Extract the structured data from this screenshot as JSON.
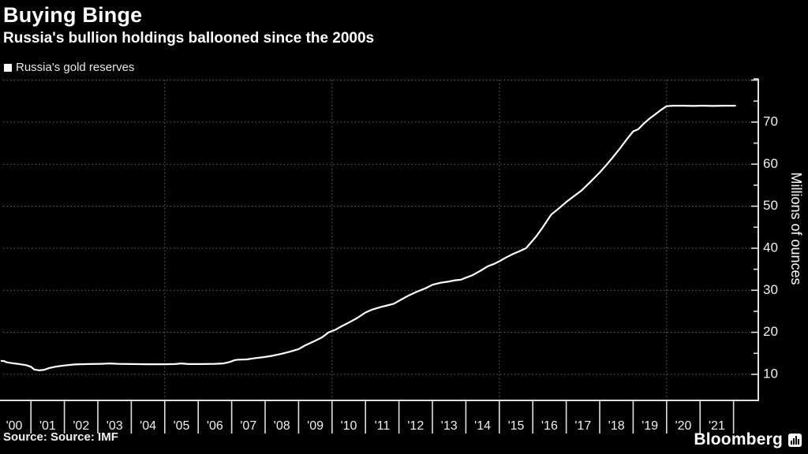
{
  "header": {
    "title": "Buying Binge",
    "subtitle": "Russia's bullion holdings ballooned since the 2000s"
  },
  "legend": {
    "label": "Russia's gold reserves",
    "marker_color": "#ffffff"
  },
  "source": {
    "text": "Source: Source: IMF"
  },
  "branding": {
    "name": "Bloomberg",
    "icon": "bar-chart-icon"
  },
  "colors": {
    "background": "#000000",
    "line": "#ffffff",
    "grid": "#6b6b6b",
    "axis": "#e0e0e0",
    "tick_label": "#f0f0f0"
  },
  "chart_data": {
    "type": "line",
    "title": "Buying Binge",
    "series_name": "Russia's gold reserves",
    "xlabel": "",
    "ylabel": "Millions of ounces",
    "x_unit": "year",
    "y_unit": "millions of troy ounces",
    "xlim": [
      2000.17,
      2022.74
    ],
    "ylim": [
      3.8,
      80.3
    ],
    "grid": "dotted",
    "legend_position": "top-left",
    "x_tick_labels": [
      "'00",
      "'01",
      "'02",
      "'03",
      "'04",
      "'05",
      "'06",
      "'07",
      "'08",
      "'09",
      "'10",
      "'11",
      "'12",
      "'13",
      "'14",
      "'15",
      "'16",
      "'17",
      "'18",
      "'19",
      "'20",
      "'21"
    ],
    "x_tick_years": [
      2000,
      2001,
      2002,
      2003,
      2004,
      2005,
      2006,
      2007,
      2008,
      2009,
      2010,
      2011,
      2012,
      2013,
      2014,
      2015,
      2016,
      2017,
      2018,
      2019,
      2020,
      2021
    ],
    "y_major_ticks": [
      10,
      20,
      30,
      40,
      50,
      60,
      70
    ],
    "y_minor_step": 5,
    "y_gridlines": [
      10,
      20,
      30,
      40,
      50,
      60,
      70,
      80
    ],
    "x_gridline_years": [
      2005,
      2010,
      2015,
      2020
    ],
    "points": [
      [
        2000.12,
        13.2
      ],
      [
        2000.2,
        13.15
      ],
      [
        2000.28,
        12.85
      ],
      [
        2000.45,
        12.65
      ],
      [
        2000.65,
        12.45
      ],
      [
        2000.85,
        12.2
      ],
      [
        2001.0,
        11.8
      ],
      [
        2001.1,
        11.15
      ],
      [
        2001.25,
        10.95
      ],
      [
        2001.4,
        11.1
      ],
      [
        2001.55,
        11.5
      ],
      [
        2001.75,
        11.85
      ],
      [
        2002.0,
        12.1
      ],
      [
        2002.3,
        12.35
      ],
      [
        2002.7,
        12.45
      ],
      [
        2003.1,
        12.5
      ],
      [
        2003.35,
        12.6
      ],
      [
        2003.6,
        12.5
      ],
      [
        2004.0,
        12.45
      ],
      [
        2004.5,
        12.4
      ],
      [
        2005.0,
        12.4
      ],
      [
        2005.3,
        12.45
      ],
      [
        2005.5,
        12.6
      ],
      [
        2005.7,
        12.45
      ],
      [
        2006.1,
        12.45
      ],
      [
        2006.5,
        12.5
      ],
      [
        2006.75,
        12.6
      ],
      [
        2006.9,
        12.85
      ],
      [
        2007.0,
        13.1
      ],
      [
        2007.1,
        13.4
      ],
      [
        2007.2,
        13.5
      ],
      [
        2007.45,
        13.55
      ],
      [
        2007.65,
        13.8
      ],
      [
        2007.95,
        14.1
      ],
      [
        2008.2,
        14.4
      ],
      [
        2008.5,
        14.9
      ],
      [
        2008.75,
        15.4
      ],
      [
        2009.0,
        16.0
      ],
      [
        2009.2,
        16.9
      ],
      [
        2009.45,
        17.8
      ],
      [
        2009.7,
        18.8
      ],
      [
        2009.9,
        20.0
      ],
      [
        2010.1,
        20.6
      ],
      [
        2010.3,
        21.5
      ],
      [
        2010.5,
        22.3
      ],
      [
        2010.75,
        23.4
      ],
      [
        2011.0,
        24.7
      ],
      [
        2011.2,
        25.4
      ],
      [
        2011.45,
        26.0
      ],
      [
        2011.65,
        26.4
      ],
      [
        2011.85,
        26.8
      ],
      [
        2012.07,
        27.8
      ],
      [
        2012.3,
        28.8
      ],
      [
        2012.55,
        29.7
      ],
      [
        2012.8,
        30.5
      ],
      [
        2013.0,
        31.3
      ],
      [
        2013.25,
        31.8
      ],
      [
        2013.5,
        32.1
      ],
      [
        2013.7,
        32.4
      ],
      [
        2013.85,
        32.5
      ],
      [
        2014.0,
        33.0
      ],
      [
        2014.2,
        33.6
      ],
      [
        2014.45,
        34.7
      ],
      [
        2014.65,
        35.7
      ],
      [
        2014.85,
        36.3
      ],
      [
        2015.0,
        36.9
      ],
      [
        2015.2,
        37.8
      ],
      [
        2015.4,
        38.6
      ],
      [
        2015.6,
        39.3
      ],
      [
        2015.8,
        40.0
      ],
      [
        2016.1,
        42.8
      ],
      [
        2016.3,
        45.0
      ],
      [
        2016.55,
        48.0
      ],
      [
        2016.8,
        49.6
      ],
      [
        2017.0,
        51.0
      ],
      [
        2017.25,
        52.5
      ],
      [
        2017.45,
        53.7
      ],
      [
        2017.7,
        55.6
      ],
      [
        2018.0,
        58.0
      ],
      [
        2018.2,
        59.8
      ],
      [
        2018.4,
        61.7
      ],
      [
        2018.6,
        63.7
      ],
      [
        2018.8,
        65.8
      ],
      [
        2019.0,
        67.8
      ],
      [
        2019.15,
        68.3
      ],
      [
        2019.3,
        69.5
      ],
      [
        2019.5,
        70.9
      ],
      [
        2019.7,
        72.1
      ],
      [
        2019.85,
        73.0
      ],
      [
        2020.0,
        73.8
      ],
      [
        2020.2,
        73.9
      ],
      [
        2020.5,
        73.9
      ],
      [
        2020.8,
        73.85
      ],
      [
        2021.1,
        73.9
      ],
      [
        2021.4,
        73.85
      ],
      [
        2021.7,
        73.9
      ],
      [
        2022.05,
        73.9
      ]
    ]
  }
}
